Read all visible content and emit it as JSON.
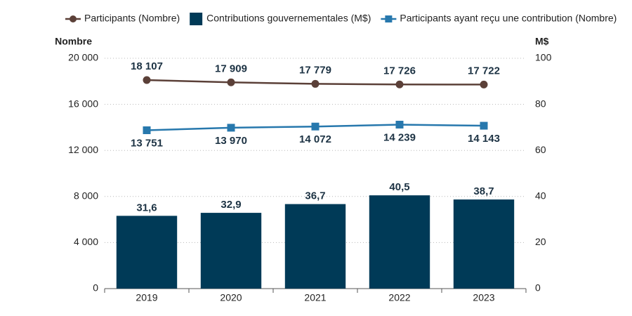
{
  "chart_data": {
    "type": "combo",
    "y_label": "Nombre",
    "y2_label": "M$",
    "categories": [
      "2019",
      "2020",
      "2021",
      "2022",
      "2023"
    ],
    "series": [
      {
        "name": "Participants (Nombre)",
        "type": "line",
        "marker": "circle",
        "label_position": "above",
        "color": "#5b4038",
        "values": [
          18107,
          17909,
          17779,
          17726,
          17722
        ],
        "value_labels": [
          "18 107",
          "17 909",
          "17 779",
          "17 726",
          "17 722"
        ]
      },
      {
        "name": "Contributions gouvernementales (M$)",
        "type": "bar",
        "axis": "y2",
        "label_position": "above",
        "color": "#003a57",
        "values": [
          31.6,
          32.9,
          36.7,
          40.5,
          38.7
        ],
        "value_labels": [
          "31,6",
          "32,9",
          "36,7",
          "40,5",
          "38,7"
        ]
      },
      {
        "name": "Participants ayant reçu une contribution (Nombre)",
        "type": "line",
        "marker": "square",
        "label_position": "below",
        "color": "#2778ad",
        "values": [
          13751,
          13970,
          14072,
          14239,
          14143
        ],
        "value_labels": [
          "13 751",
          "13 970",
          "14 072",
          "14 239",
          "14 143"
        ]
      }
    ],
    "ylim": [
      0,
      20000
    ],
    "yticks": [
      0,
      {
        "value": 4000,
        "label": "4 000"
      },
      {
        "value": 8000,
        "label": "8 000"
      },
      {
        "value": 12000,
        "label": "12 000"
      },
      {
        "value": 16000,
        "label": "16 000"
      },
      {
        "value": 20000,
        "label": "20 000"
      }
    ],
    "y2lim": [
      0,
      100
    ],
    "y2ticks": [
      0,
      20,
      40,
      60,
      80,
      100
    ],
    "grid": true
  }
}
